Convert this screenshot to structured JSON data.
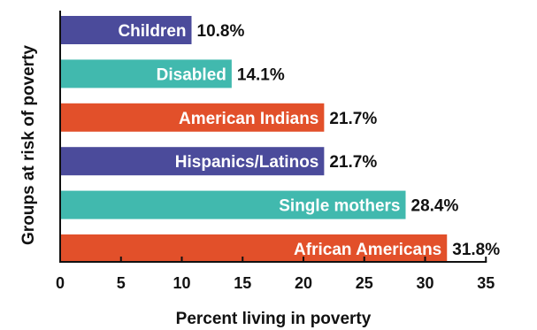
{
  "chart_data": {
    "type": "bar",
    "orientation": "horizontal",
    "categories": [
      "Children",
      "Disabled",
      "American Indians",
      "Hispanics/Latinos",
      "Single mothers",
      "African Americans"
    ],
    "values": [
      10.8,
      14.1,
      21.7,
      21.7,
      28.4,
      31.8
    ],
    "value_labels": [
      "10.8%",
      "14.1%",
      "21.7%",
      "21.7%",
      "28.4%",
      "31.8%"
    ],
    "bar_colors": [
      "#4b4b9b",
      "#41b9ae",
      "#e2502a",
      "#4b4b9b",
      "#41b9ae",
      "#e2502a"
    ],
    "xlabel": "Percent living in poverty",
    "ylabel": "Groups at risk of poverty",
    "xlim": [
      0,
      35
    ],
    "xticks": [
      0,
      5,
      10,
      15,
      20,
      25,
      30,
      35
    ],
    "grid": false,
    "legend": "none"
  }
}
